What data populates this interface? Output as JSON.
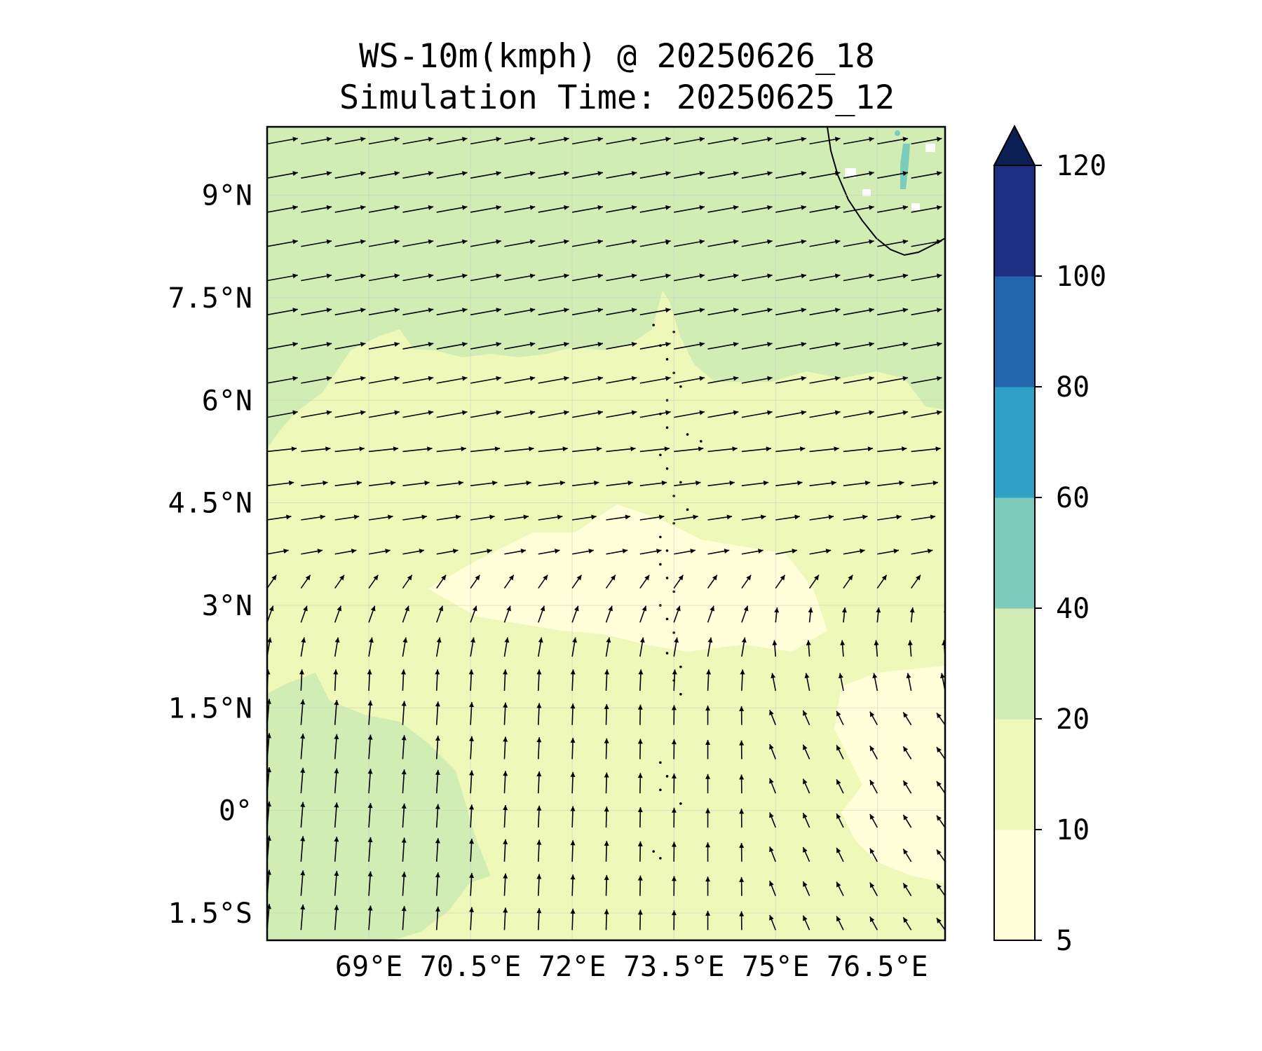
{
  "title_line1": "WS-10m(kmph) @ 20250626_18",
  "title_line2": "Simulation Time: 20250625_12",
  "map": {
    "lon_range": [
      67.5,
      77.5
    ],
    "lat_range": [
      -1.9,
      10.0
    ],
    "lon_ticks": [
      69,
      70.5,
      72,
      73.5,
      75,
      76.5
    ],
    "lon_tick_labels": [
      "69°E",
      "70.5°E",
      "72°E",
      "73.5°E",
      "75°E",
      "76.5°E"
    ],
    "lat_ticks": [
      9,
      7.5,
      6,
      4.5,
      3,
      1.5,
      0,
      -1.5
    ],
    "lat_tick_labels": [
      "9°N",
      "7.5°N",
      "6°N",
      "4.5°N",
      "3°N",
      "1.5°N",
      "0°",
      "1.5°S"
    ],
    "gridlines": true
  },
  "colorbar": {
    "levels": [
      5,
      10,
      20,
      40,
      60,
      80,
      100,
      120
    ],
    "labels": [
      "5",
      "10",
      "20",
      "40",
      "60",
      "80",
      "100",
      "120"
    ],
    "colors": [
      "#ffffd9",
      "#eef8b8",
      "#d1edb4",
      "#7ccbbb",
      "#2ea1c6",
      "#2165ae",
      "#1d2e83"
    ],
    "extend_color": "#0c1f55"
  },
  "colors": {
    "band_north": "#d1edb4",
    "band_mid": "#eef8b8",
    "band_calm": "#ffffd9",
    "coast": "#000000",
    "arrow": "#000000"
  }
}
